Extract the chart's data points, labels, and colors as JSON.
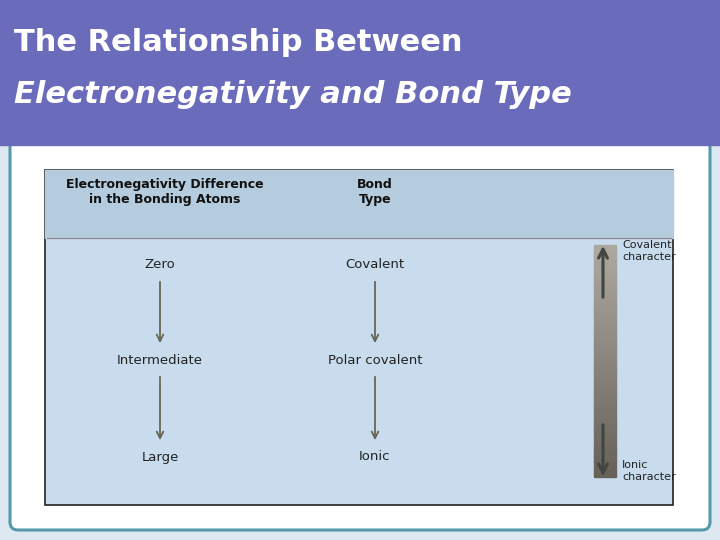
{
  "title_line1": "The Relationship Between",
  "title_line2": "Electronegativity and Bond Type",
  "title_bg_color": "#6B6BBB",
  "title_text_color": "#ffffff",
  "slide_bg_color": "#dde8f0",
  "table_bg_color": "#c8dced",
  "table_border_color": "#222222",
  "outer_border_color": "#5599aa",
  "outer_bg_color": "#ffffff",
  "col1_header": "Electronegativity Difference\nin the Bonding Atoms",
  "col2_header": "Bond\nType",
  "col1_items": [
    "Zero",
    "Intermediate",
    "Large"
  ],
  "col2_items": [
    "Covalent",
    "Polar covalent",
    "Ionic"
  ],
  "arrow_color": "#666655",
  "covalent_label": "Covalent\ncharacter",
  "ionic_label": "Ionic\ncharacter",
  "title_font_size": 22,
  "header_font_size": 9,
  "body_font_size": 9.5
}
